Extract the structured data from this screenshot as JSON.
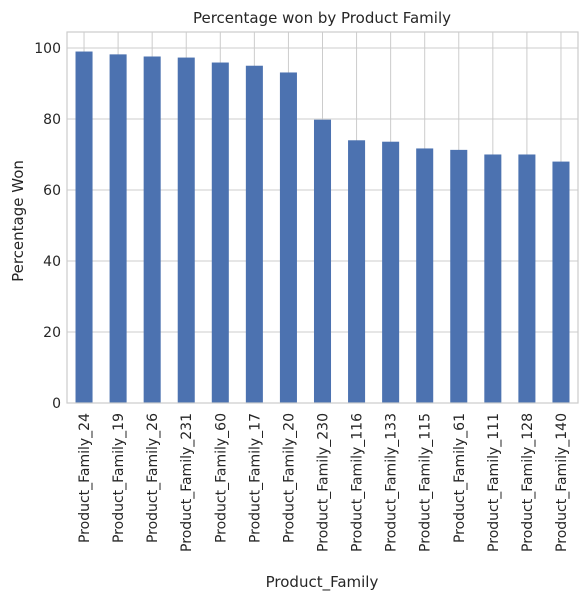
{
  "chart_data": {
    "type": "bar",
    "title": "Percentage won by Product Family",
    "xlabel": "Product_Family",
    "ylabel": "Percentage Won",
    "categories": [
      "Product_Family_24",
      "Product_Family_19",
      "Product_Family_26",
      "Product_Family_231",
      "Product_Family_60",
      "Product_Family_17",
      "Product_Family_20",
      "Product_Family_230",
      "Product_Family_116",
      "Product_Family_133",
      "Product_Family_115",
      "Product_Family_61",
      "Product_Family_111",
      "Product_Family_128",
      "Product_Family_140"
    ],
    "values": [
      99.0,
      98.2,
      97.6,
      97.3,
      95.9,
      95.0,
      93.1,
      79.8,
      74.0,
      73.6,
      71.7,
      71.3,
      70.0,
      70.0,
      68.0
    ],
    "ylim": [
      0,
      104.5
    ],
    "yticks": [
      0,
      20,
      40,
      60,
      80,
      100
    ],
    "grid": true,
    "legend": "none",
    "colors": {
      "bar": "#4c72b0",
      "grid": "#cccccc",
      "spine": "#cccccc",
      "text": "#262626"
    }
  }
}
